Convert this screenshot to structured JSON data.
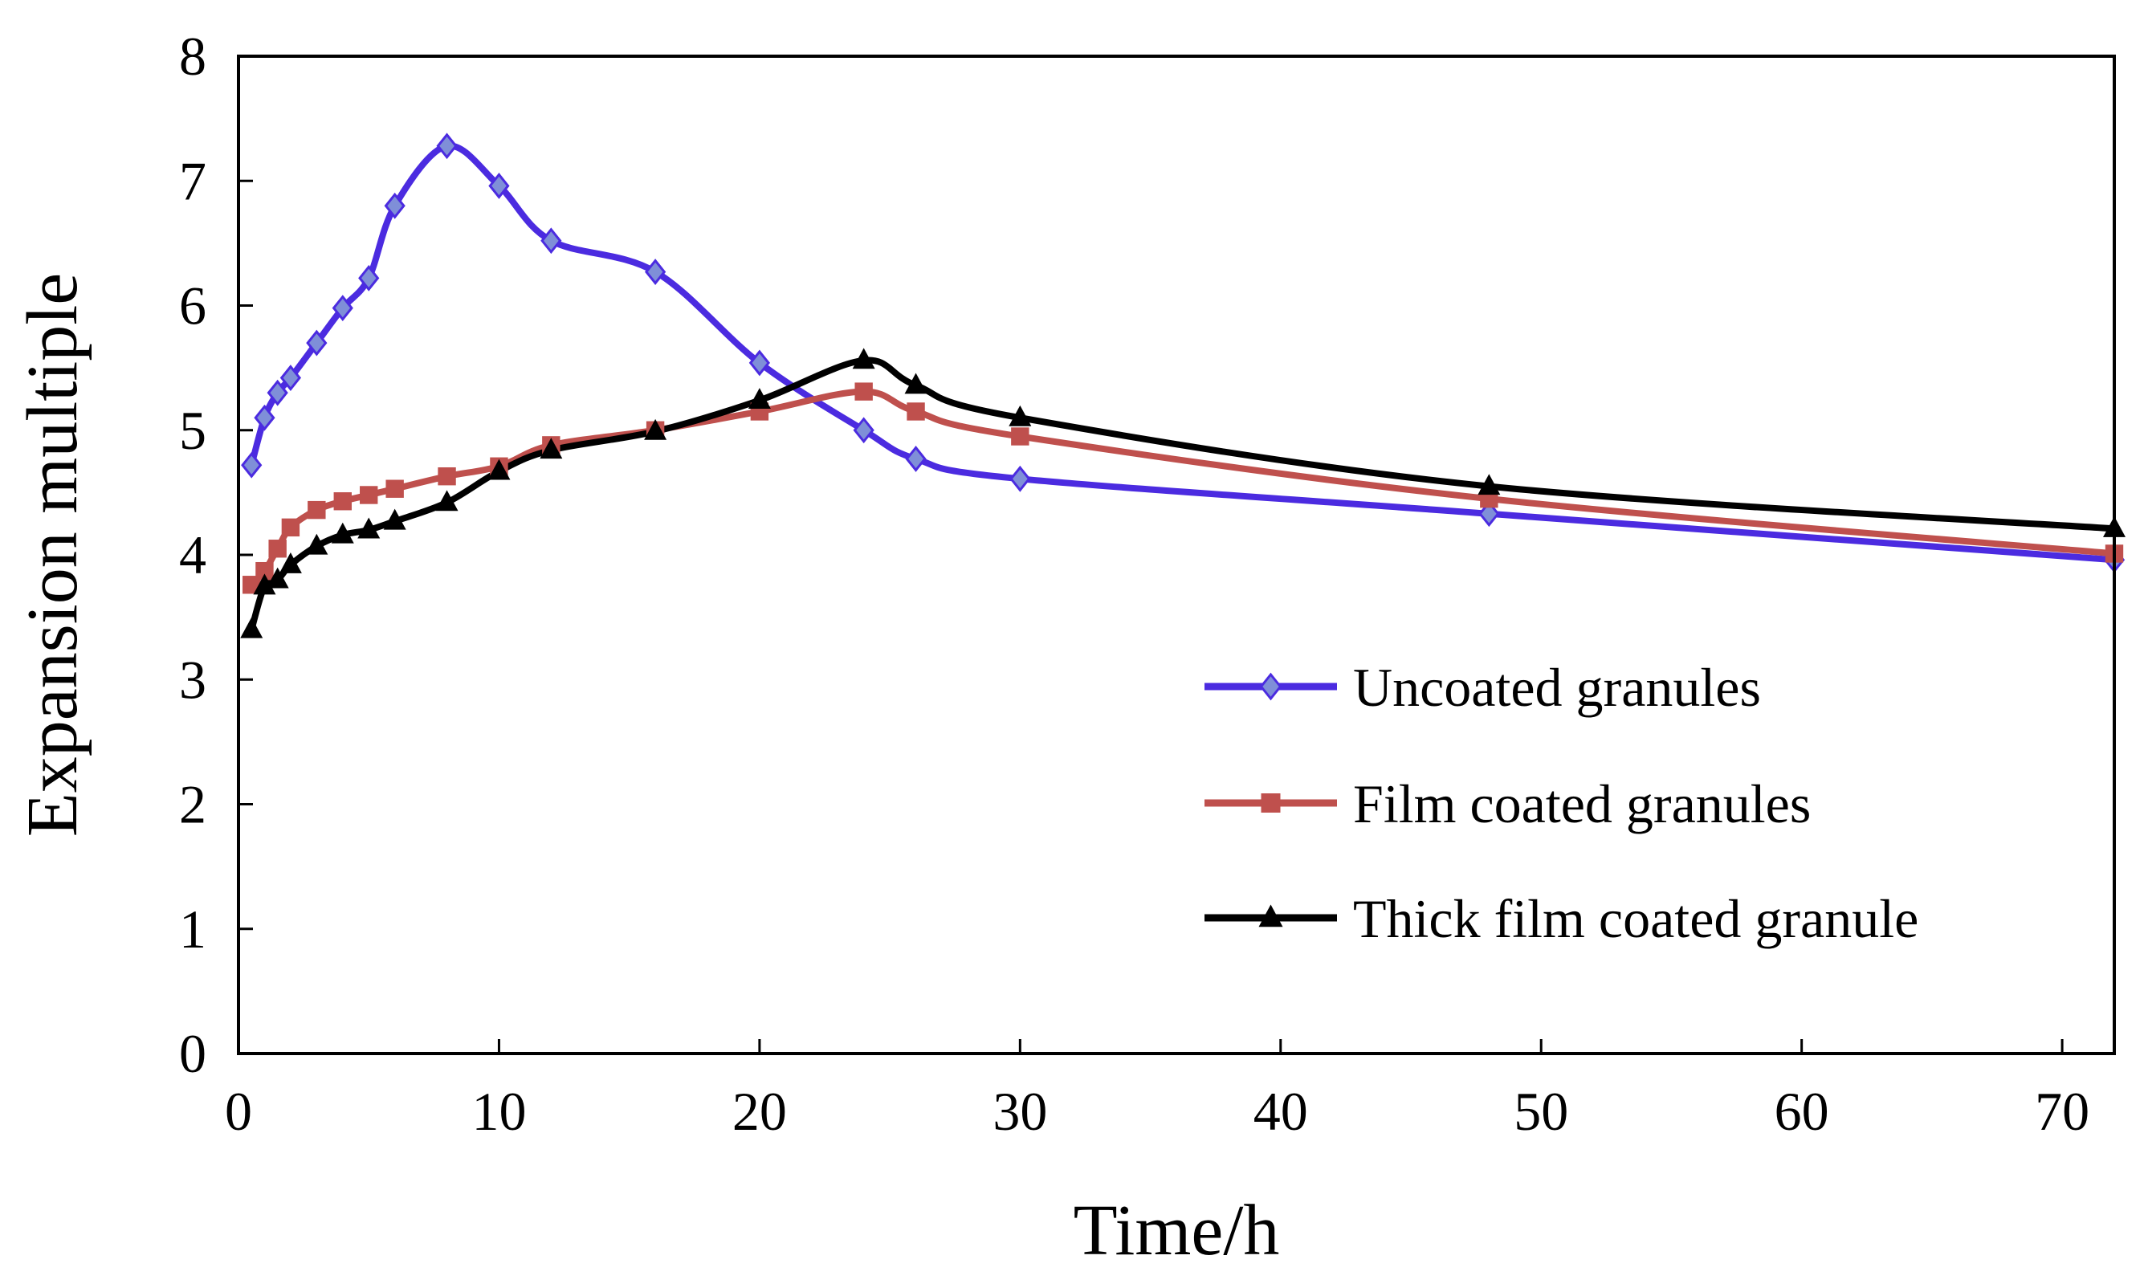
{
  "chart_data": {
    "type": "line",
    "title": "",
    "xlabel": "Time/h",
    "ylabel": "Expansion multiple",
    "xlim": [
      0,
      72
    ],
    "ylim": [
      0,
      8
    ],
    "xticks": [
      0,
      10,
      20,
      30,
      40,
      50,
      60,
      70
    ],
    "yticks": [
      0,
      1,
      2,
      3,
      4,
      5,
      6,
      7,
      8
    ],
    "grid": false,
    "legend_position": "lower-right",
    "series": [
      {
        "name": "Uncoated granules",
        "color": "#4B2BE0",
        "marker": "diamond",
        "x": [
          0.5,
          1,
          1.5,
          2,
          3,
          4,
          5,
          6,
          8,
          10,
          12,
          16,
          20,
          24,
          26,
          30,
          48,
          72
        ],
        "y": [
          4.72,
          5.1,
          5.3,
          5.42,
          5.7,
          5.98,
          6.22,
          6.8,
          7.28,
          6.96,
          6.52,
          6.27,
          5.54,
          5.0,
          4.77,
          4.61,
          4.33,
          3.96
        ]
      },
      {
        "name": "Film coated granules",
        "color": "#BF504D",
        "marker": "square",
        "x": [
          0.5,
          1,
          1.5,
          2,
          3,
          4,
          5,
          6,
          8,
          10,
          12,
          16,
          20,
          24,
          26,
          30,
          48,
          72
        ],
        "y": [
          3.76,
          3.87,
          4.05,
          4.22,
          4.36,
          4.43,
          4.48,
          4.53,
          4.63,
          4.71,
          4.88,
          5.0,
          5.15,
          5.31,
          5.15,
          4.95,
          4.45,
          4.01
        ]
      },
      {
        "name": "Thick film coated granule",
        "color": "#000000",
        "marker": "triangle",
        "x": [
          0.5,
          1,
          1.5,
          2,
          3,
          4,
          5,
          6,
          8,
          10,
          12,
          16,
          20,
          24,
          26,
          30,
          48,
          72
        ],
        "y": [
          3.4,
          3.75,
          3.8,
          3.92,
          4.07,
          4.16,
          4.2,
          4.27,
          4.42,
          4.67,
          4.84,
          4.99,
          5.24,
          5.56,
          5.36,
          5.1,
          4.55,
          4.21
        ]
      }
    ]
  }
}
